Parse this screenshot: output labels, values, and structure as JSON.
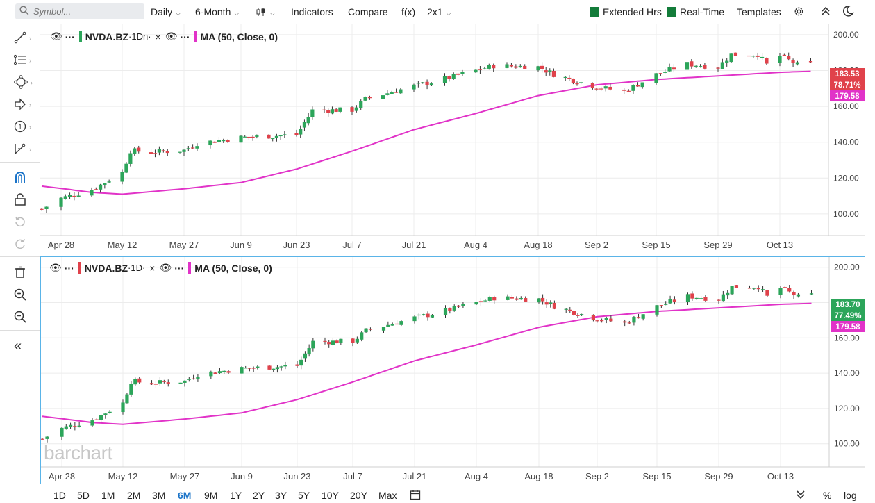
{
  "toolbar": {
    "search_placeholder": "Symbol...",
    "interval": "Daily",
    "period": "6-Month",
    "indicators": "Indicators",
    "compare": "Compare",
    "fx": "f(x)",
    "layout": "2x1",
    "extended_hrs": "Extended Hrs",
    "real_time": "Real-Time",
    "templates": "Templates"
  },
  "colors": {
    "up": "#2ca55a",
    "down": "#e0424b",
    "ma": "#e133c8",
    "toggle_green": "#137c3a",
    "active_border": "#5ab4e8"
  },
  "charts": [
    {
      "symbol": "NVDA.BZ",
      "interval_code": "·1Dn·",
      "ma_label": "MA (50, Close, 0)",
      "last_price": "183.53",
      "last_color": "#e0424b",
      "percent": "78.71%",
      "ma_value": "179.58"
    },
    {
      "symbol": "NVDA.BZ",
      "interval_code": "·1D·",
      "ma_label": "MA (50, Close, 0)",
      "last_price": "183.70",
      "last_color": "#2ca55a",
      "percent": "77.49%",
      "ma_value": "179.58"
    }
  ],
  "watermark": "barchart",
  "chart_data": {
    "type": "candlestick",
    "title": "NVDA.BZ",
    "x_tick_labels": [
      "Apr 28",
      "May 12",
      "May 27",
      "Jun 9",
      "Jun 23",
      "Jul 7",
      "Jul 21",
      "Aug 4",
      "Aug 18",
      "Sep 2",
      "Sep 15",
      "Sep 29",
      "Oct 13"
    ],
    "y_tick_labels": [
      "200.00",
      "180.00",
      "160.00",
      "140.00",
      "120.00",
      "100.00"
    ],
    "ylim": [
      93,
      205
    ],
    "close_series": [
      {
        "date": "Apr 24",
        "close": 102.7
      },
      {
        "date": "Apr 28",
        "close": 108.7
      },
      {
        "date": "May 5",
        "close": 113.5
      },
      {
        "date": "May 12",
        "close": 123.0
      },
      {
        "date": "May 14",
        "close": 135.3
      },
      {
        "date": "May 19",
        "close": 134.4
      },
      {
        "date": "May 27",
        "close": 135.5
      },
      {
        "date": "May 30",
        "close": 139.4
      },
      {
        "date": "Jun 9",
        "close": 142.6
      },
      {
        "date": "Jun 23",
        "close": 144.2
      },
      {
        "date": "Jun 27",
        "close": 157.8
      },
      {
        "date": "Jul 7",
        "close": 158.0
      },
      {
        "date": "Jul 10",
        "close": 164.1
      },
      {
        "date": "Jul 21",
        "close": 171.4
      },
      {
        "date": "Jul 25",
        "close": 173.5
      },
      {
        "date": "Aug 4",
        "close": 180.0
      },
      {
        "date": "Aug 8",
        "close": 182.7
      },
      {
        "date": "Aug 18",
        "close": 182.0
      },
      {
        "date": "Aug 22",
        "close": 177.9
      },
      {
        "date": "Sep 2",
        "close": 170.8
      },
      {
        "date": "Sep 8",
        "close": 168.3
      },
      {
        "date": "Sep 15",
        "close": 177.8
      },
      {
        "date": "Sep 22",
        "close": 183.6
      },
      {
        "date": "Sep 29",
        "close": 181.9
      },
      {
        "date": "Oct 2",
        "close": 188.9
      },
      {
        "date": "Oct 8",
        "close": 189.1
      },
      {
        "date": "Oct 10",
        "close": 183.2
      },
      {
        "date": "Oct 13",
        "close": 188.3
      },
      {
        "date": "Oct 17",
        "close": 183.2
      },
      {
        "date": "Oct 20",
        "close": 183.6
      }
    ],
    "ma_series": [
      {
        "date": "Apr 24",
        "value": 115.5
      },
      {
        "date": "May 5",
        "value": 112.0
      },
      {
        "date": "May 12",
        "value": 111.0
      },
      {
        "date": "May 27",
        "value": 114.0
      },
      {
        "date": "Jun 9",
        "value": 117.5
      },
      {
        "date": "Jun 23",
        "value": 125.0
      },
      {
        "date": "Jul 7",
        "value": 135.0
      },
      {
        "date": "Jul 21",
        "value": 147.0
      },
      {
        "date": "Aug 4",
        "value": 156.0
      },
      {
        "date": "Aug 18",
        "value": 166.0
      },
      {
        "date": "Sep 2",
        "value": 172.0
      },
      {
        "date": "Sep 15",
        "value": 175.0
      },
      {
        "date": "Sep 29",
        "value": 177.0
      },
      {
        "date": "Oct 13",
        "value": 179.0
      },
      {
        "date": "Oct 20",
        "value": 179.58
      }
    ]
  },
  "ranges": [
    "1D",
    "5D",
    "1M",
    "2M",
    "3M",
    "6M",
    "9M",
    "1Y",
    "2Y",
    "3Y",
    "5Y",
    "10Y",
    "20Y",
    "Max"
  ],
  "active_range": "6M",
  "percent_label": "%",
  "log_label": "log"
}
